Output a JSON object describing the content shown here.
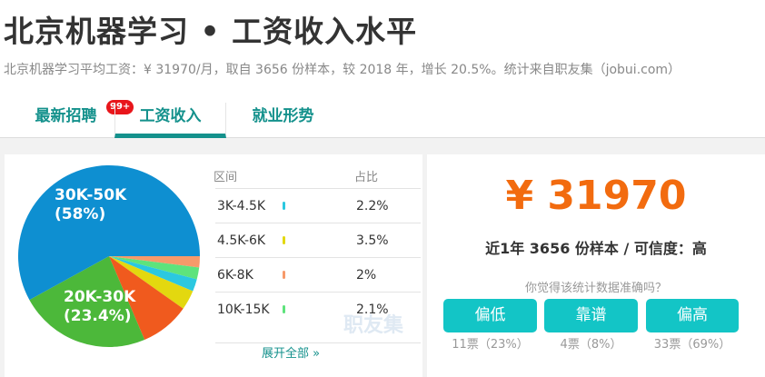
{
  "title": "北京机器学习 • 工资收入水平",
  "subtitle": "北京机器学习平均工资：¥ 31970/月，取自 3656 份样本，较 2018 年，增长 20.5%。统计来自职友集（jobui.com）",
  "tabs": [
    {
      "label": "最新招聘",
      "badge": "99+"
    },
    {
      "label": "工资收入",
      "active": true
    },
    {
      "label": "就业形势"
    }
  ],
  "chart_data": {
    "type": "pie",
    "slices": [
      {
        "name": "6K-8K",
        "value": 2,
        "color": "#f79a6a"
      },
      {
        "name": "10K-15K",
        "value": 2.1,
        "color": "#5ee37c"
      },
      {
        "name": "3K-4.5K",
        "value": 2.2,
        "color": "#2bc8e0"
      },
      {
        "name": "4.5K-6K",
        "value": 3.5,
        "color": "#e3d80f"
      },
      {
        "name": "",
        "value": 8.8,
        "color": "#f05a1e"
      },
      {
        "name": "20K-30K",
        "value": 23.4,
        "color": "#4cb83a",
        "label": "20K-30K",
        "pct": "(23.4%)"
      },
      {
        "name": "30K-50K",
        "value": 58,
        "color": "#0e8fd1",
        "label": "30K-50K",
        "pct": "(58%)"
      }
    ]
  },
  "table": {
    "headers": [
      "区间",
      "占比"
    ],
    "rows": [
      {
        "range": "3K-4.5K",
        "pct": "2.2%",
        "color": "#2bc8e0"
      },
      {
        "range": "4.5K-6K",
        "pct": "3.5%",
        "color": "#e3d80f"
      },
      {
        "range": "6K-8K",
        "pct": "2%",
        "color": "#f79a6a"
      },
      {
        "range": "10K-15K",
        "pct": "2.1%",
        "color": "#5ee37c"
      }
    ],
    "expand": "展开全部 »"
  },
  "watermark": "职友集",
  "summary": {
    "salary": "¥ 31970",
    "detail": "近1年 3656 份样本 / 可信度：高",
    "question": "你觉得该统计数据准确吗？",
    "buttons": [
      {
        "label": "偏低",
        "votes": "11票（23%）"
      },
      {
        "label": "靠谱",
        "votes": "4票（8%）"
      },
      {
        "label": "偏高",
        "votes": "33票（69%）"
      }
    ]
  }
}
